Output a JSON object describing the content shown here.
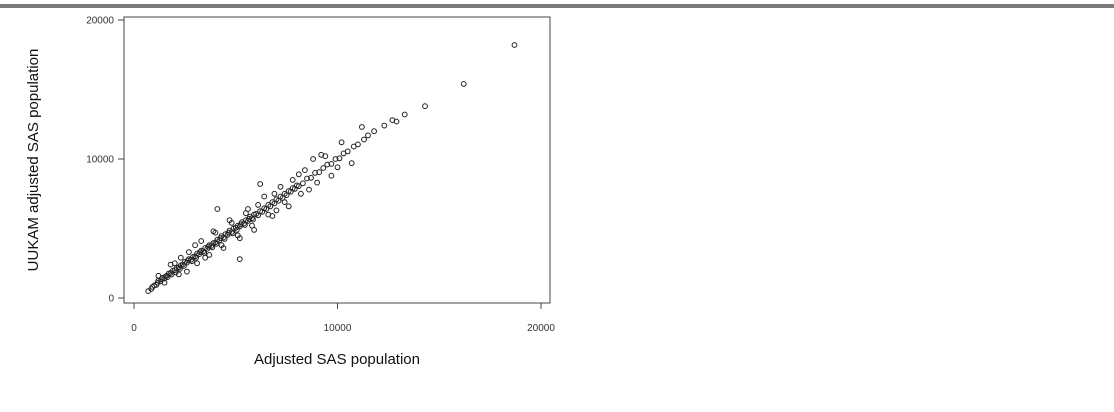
{
  "chart_data": {
    "type": "scatter",
    "title": "",
    "xlabel": "Adjusted SAS population",
    "ylabel": "UUKAM adjusted SAS population",
    "xlim": [
      0,
      20000
    ],
    "ylim": [
      0,
      20000
    ],
    "xticks": [
      0,
      10000,
      20000
    ],
    "yticks": [
      0,
      10000,
      20000
    ],
    "xtick_labels": [
      "0",
      "10000",
      "20000"
    ],
    "ytick_labels": [
      "0",
      "10000",
      "20000"
    ],
    "grid": false,
    "legend": "none",
    "marker_color": "#222222",
    "series": [
      {
        "points": [
          [
            700,
            500
          ],
          [
            850,
            650
          ],
          [
            900,
            800
          ],
          [
            1000,
            900
          ],
          [
            1100,
            950
          ],
          [
            1150,
            1100
          ],
          [
            1200,
            1250
          ],
          [
            1300,
            1200
          ],
          [
            1350,
            1350
          ],
          [
            1400,
            1450
          ],
          [
            1500,
            1400
          ],
          [
            1550,
            1550
          ],
          [
            1600,
            1600
          ],
          [
            1650,
            1500
          ],
          [
            1700,
            1750
          ],
          [
            1800,
            1800
          ],
          [
            1850,
            1700
          ],
          [
            1900,
            1950
          ],
          [
            2000,
            2000
          ],
          [
            2050,
            1850
          ],
          [
            2100,
            2150
          ],
          [
            2200,
            2200
          ],
          [
            2250,
            2100
          ],
          [
            2300,
            2350
          ],
          [
            2400,
            2400
          ],
          [
            2450,
            2300
          ],
          [
            2500,
            2600
          ],
          [
            2600,
            2550
          ],
          [
            2650,
            2700
          ],
          [
            2700,
            2800
          ],
          [
            2800,
            2750
          ],
          [
            2850,
            2650
          ],
          [
            2900,
            2950
          ],
          [
            3000,
            3000
          ],
          [
            3050,
            2900
          ],
          [
            3100,
            3200
          ],
          [
            3200,
            3150
          ],
          [
            3250,
            3300
          ],
          [
            3300,
            3400
          ],
          [
            3400,
            3350
          ],
          [
            3450,
            3250
          ],
          [
            3500,
            3600
          ],
          [
            3600,
            3550
          ],
          [
            3650,
            3700
          ],
          [
            3700,
            3800
          ],
          [
            3800,
            3750
          ],
          [
            3850,
            3650
          ],
          [
            3900,
            3950
          ],
          [
            4000,
            4000
          ],
          [
            4050,
            3900
          ],
          [
            4100,
            4200
          ],
          [
            4200,
            4150
          ],
          [
            4250,
            4300
          ],
          [
            4300,
            4450
          ],
          [
            4400,
            4350
          ],
          [
            4450,
            4250
          ],
          [
            4500,
            4600
          ],
          [
            4600,
            4550
          ],
          [
            4650,
            4700
          ],
          [
            4700,
            4850
          ],
          [
            4800,
            4750
          ],
          [
            4850,
            4650
          ],
          [
            4900,
            5000
          ],
          [
            5000,
            5050
          ],
          [
            5050,
            4900
          ],
          [
            5100,
            5200
          ],
          [
            5200,
            5150
          ],
          [
            5250,
            5300
          ],
          [
            5300,
            5450
          ],
          [
            5400,
            5350
          ],
          [
            5450,
            5250
          ],
          [
            5500,
            5600
          ],
          [
            5600,
            5550
          ],
          [
            5650,
            5700
          ],
          [
            5700,
            5850
          ],
          [
            5800,
            5750
          ],
          [
            5850,
            5650
          ],
          [
            5900,
            6000
          ],
          [
            6000,
            6050
          ],
          [
            6100,
            5950
          ],
          [
            6200,
            6250
          ],
          [
            6300,
            6200
          ],
          [
            6400,
            6450
          ],
          [
            6500,
            6400
          ],
          [
            6600,
            6700
          ],
          [
            6700,
            6600
          ],
          [
            6800,
            6900
          ],
          [
            6900,
            6800
          ],
          [
            7000,
            7100
          ],
          [
            7100,
            7000
          ],
          [
            7200,
            7300
          ],
          [
            7300,
            7200
          ],
          [
            7400,
            7500
          ],
          [
            7500,
            7400
          ],
          [
            7600,
            7700
          ],
          [
            7700,
            7650
          ],
          [
            7800,
            7900
          ],
          [
            7900,
            7850
          ],
          [
            8000,
            8100
          ],
          [
            8100,
            8050
          ],
          [
            8300,
            8250
          ],
          [
            8500,
            8600
          ],
          [
            8700,
            8650
          ],
          [
            8900,
            9000
          ],
          [
            9100,
            9050
          ],
          [
            9300,
            9350
          ],
          [
            9500,
            9600
          ],
          [
            9700,
            9650
          ],
          [
            9900,
            10000
          ],
          [
            10100,
            10050
          ],
          [
            10300,
            10400
          ],
          [
            10500,
            10550
          ],
          [
            10800,
            10900
          ],
          [
            11000,
            11050
          ],
          [
            11300,
            11400
          ],
          [
            11500,
            11700
          ],
          [
            11800,
            12000
          ],
          [
            12300,
            12400
          ],
          [
            12700,
            12800
          ],
          [
            13300,
            13200
          ],
          [
            14300,
            13800
          ],
          [
            16200,
            15400
          ],
          [
            18700,
            18200
          ],
          [
            1800,
            2400
          ],
          [
            2300,
            2900
          ],
          [
            2600,
            1900
          ],
          [
            3000,
            3800
          ],
          [
            3500,
            2900
          ],
          [
            3900,
            4800
          ],
          [
            4400,
            3600
          ],
          [
            4700,
            5600
          ],
          [
            5200,
            4300
          ],
          [
            5600,
            6400
          ],
          [
            5900,
            4900
          ],
          [
            6400,
            7300
          ],
          [
            6800,
            5900
          ],
          [
            7200,
            8000
          ],
          [
            7600,
            6600
          ],
          [
            8100,
            8900
          ],
          [
            8600,
            7800
          ],
          [
            9200,
            10300
          ],
          [
            9700,
            8800
          ],
          [
            10200,
            11200
          ],
          [
            10700,
            9700
          ],
          [
            11200,
            12300
          ],
          [
            4100,
            6400
          ],
          [
            5200,
            2800
          ],
          [
            6200,
            8200
          ],
          [
            7000,
            6300
          ],
          [
            8800,
            10000
          ],
          [
            12900,
            12700
          ],
          [
            1200,
            1600
          ],
          [
            1500,
            1100
          ],
          [
            2000,
            2500
          ],
          [
            2200,
            1700
          ],
          [
            2700,
            3300
          ],
          [
            3100,
            2500
          ],
          [
            3300,
            4100
          ],
          [
            3700,
            3100
          ],
          [
            4000,
            4700
          ],
          [
            4300,
            3800
          ],
          [
            4800,
            5400
          ],
          [
            5100,
            4500
          ],
          [
            5500,
            6100
          ],
          [
            5800,
            5200
          ],
          [
            6100,
            6700
          ],
          [
            6600,
            6000
          ],
          [
            6900,
            7500
          ],
          [
            7400,
            6900
          ],
          [
            7800,
            8500
          ],
          [
            8200,
            7500
          ],
          [
            8400,
            9200
          ],
          [
            9000,
            8300
          ],
          [
            9400,
            10200
          ],
          [
            10000,
            9400
          ]
        ]
      }
    ]
  }
}
